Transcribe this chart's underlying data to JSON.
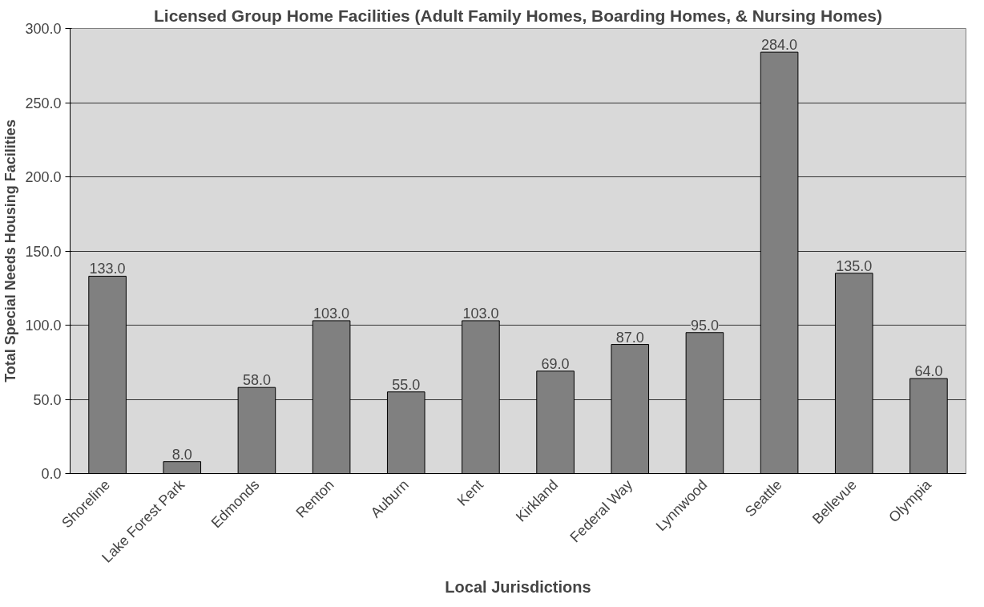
{
  "chart_data": {
    "type": "bar",
    "title": "Licensed Group Home Facilities (Adult Family Homes, Boarding Homes, & Nursing Homes)",
    "xlabel": "Local Jurisdictions",
    "ylabel": "Total Special Needs Housing Facilities",
    "categories": [
      "Shoreline",
      "Lake Forest Park",
      "Edmonds",
      "Renton",
      "Auburn",
      "Kent",
      "Kirkland",
      "Federal Way",
      "Lynnwood",
      "Seattle",
      "Bellevue",
      "Olympia"
    ],
    "values": [
      133,
      8,
      58,
      103,
      55,
      103,
      69,
      87,
      95,
      284,
      135,
      64
    ],
    "value_labels": [
      "133.0",
      "8.0",
      "58.0",
      "103.0",
      "55.0",
      "103.0",
      "69.0",
      "87.0",
      "95.0",
      "284.0",
      "135.0",
      "64.0"
    ],
    "color": "#808080",
    "ylim": [
      0,
      300
    ],
    "yticks": [
      {
        "value": 0,
        "label": "0.0"
      },
      {
        "value": 50,
        "label": "50.0"
      },
      {
        "value": 100,
        "label": "100.0"
      },
      {
        "value": 150,
        "label": "150.0"
      },
      {
        "value": 200,
        "label": "200.0"
      },
      {
        "value": 250,
        "label": "250.0"
      },
      {
        "value": 300,
        "label": "300.0"
      }
    ],
    "grid": "y"
  }
}
